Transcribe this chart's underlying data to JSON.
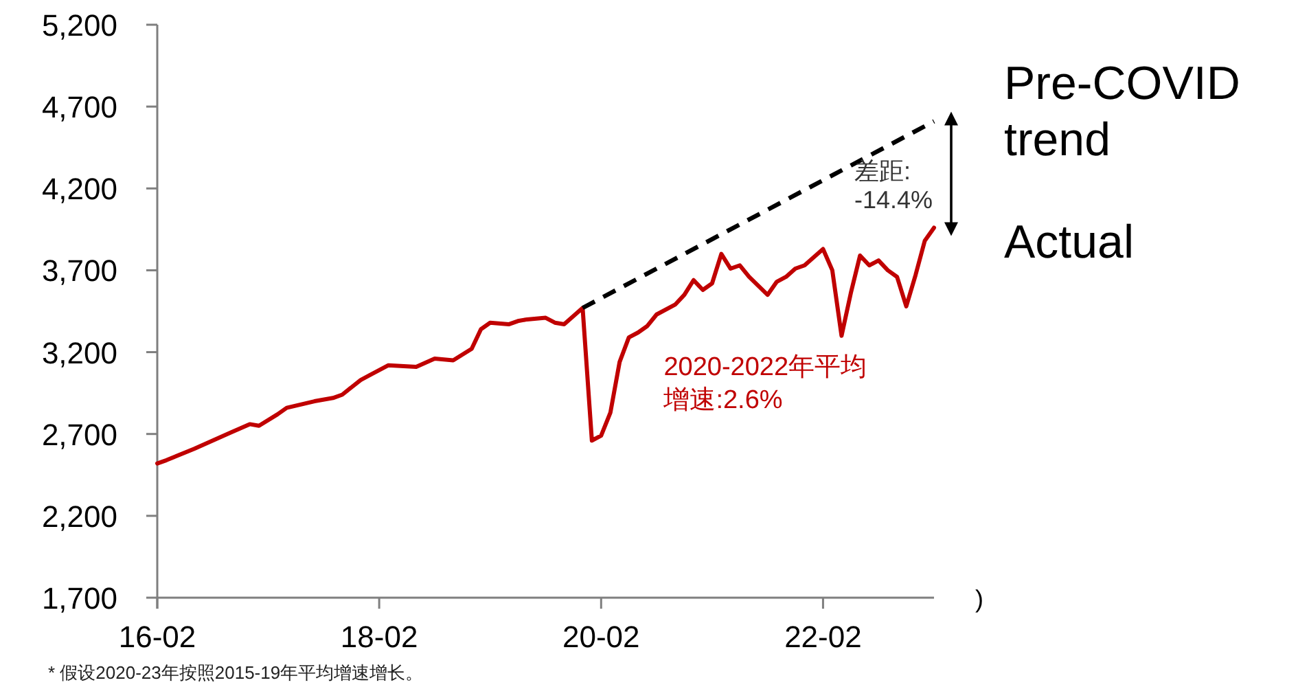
{
  "chart_data": {
    "type": "line",
    "legend": "right",
    "xlim": [
      "2016-02",
      "2023-02"
    ],
    "xticks": [
      {
        "value": "2016-02",
        "label": "16-02"
      },
      {
        "value": "2018-02",
        "label": "18-02"
      },
      {
        "value": "2020-02",
        "label": "20-02"
      },
      {
        "value": "2022-02",
        "label": "22-02"
      }
    ],
    "ylim": [
      1700,
      5200
    ],
    "yticks": [
      {
        "value": 1700,
        "label": "1,700"
      },
      {
        "value": 2200,
        "label": "2,200"
      },
      {
        "value": 2700,
        "label": "2,700"
      },
      {
        "value": 3200,
        "label": "3,200"
      },
      {
        "value": 3700,
        "label": "3,700"
      },
      {
        "value": 4200,
        "label": "4,200"
      },
      {
        "value": 4700,
        "label": "4,700"
      },
      {
        "value": 5200,
        "label": "5,200"
      }
    ],
    "series": [
      {
        "name": "Actual",
        "color": "#c00000",
        "x": [
          "2016-02",
          "2016-03",
          "2016-06",
          "2016-08",
          "2016-10",
          "2016-12",
          "2017-01",
          "2017-03",
          "2017-04",
          "2017-07",
          "2017-09",
          "2017-10",
          "2017-12",
          "2018-01",
          "2018-03",
          "2018-06",
          "2018-08",
          "2018-10",
          "2018-12",
          "2019-01",
          "2019-02",
          "2019-04",
          "2019-05",
          "2019-06",
          "2019-08",
          "2019-09",
          "2019-10",
          "2019-12",
          "2020-01",
          "2020-02",
          "2020-03",
          "2020-04",
          "2020-05",
          "2020-06",
          "2020-07",
          "2020-08",
          "2020-10",
          "2020-11",
          "2020-12",
          "2021-01",
          "2021-02",
          "2021-03",
          "2021-04",
          "2021-05",
          "2021-06",
          "2021-08",
          "2021-09",
          "2021-10",
          "2021-11",
          "2021-12",
          "2022-02",
          "2022-03",
          "2022-04",
          "2022-05",
          "2022-06",
          "2022-07",
          "2022-08",
          "2022-09",
          "2022-10",
          "2022-11",
          "2022-12",
          "2023-01",
          "2023-02"
        ],
        "values": [
          2520,
          2540,
          2610,
          2660,
          2710,
          2760,
          2750,
          2820,
          2860,
          2900,
          2920,
          2940,
          3030,
          3060,
          3120,
          3110,
          3160,
          3150,
          3220,
          3340,
          3380,
          3370,
          3390,
          3400,
          3410,
          3380,
          3370,
          3470,
          2660,
          2690,
          2830,
          3140,
          3290,
          3320,
          3360,
          3430,
          3490,
          3550,
          3640,
          3580,
          3620,
          3800,
          3710,
          3730,
          3660,
          3550,
          3630,
          3660,
          3710,
          3730,
          3830,
          3700,
          3300,
          3560,
          3790,
          3730,
          3760,
          3700,
          3660,
          3480,
          3670,
          3880,
          3960
        ]
      },
      {
        "name": "Pre-COVID trend",
        "color": "#000000",
        "line_style": "dashed",
        "x": [
          "2019-12",
          "2023-02"
        ],
        "values": [
          3470,
          4610
        ]
      }
    ],
    "annotations": [
      "2020-2022年平均增速:2.6%",
      "差距: -14.4%",
      "* 假设2020-23年按照2015-19年平均增速增长。",
      ")"
    ]
  }
}
